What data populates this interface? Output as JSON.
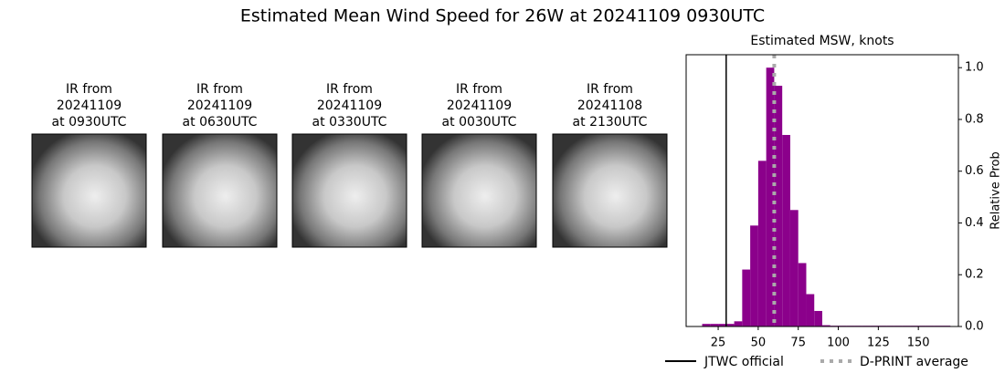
{
  "title": "Estimated Mean Wind Speed for 26W at 20241109 0930UTC",
  "panels": [
    {
      "caption": [
        "IR from",
        "20241109",
        "at 0930UTC"
      ]
    },
    {
      "caption": [
        "IR from",
        "20241109",
        "at 0630UTC"
      ]
    },
    {
      "caption": [
        "IR from",
        "20241109",
        "at 0330UTC"
      ]
    },
    {
      "caption": [
        "IR from",
        "20241109",
        "at 0030UTC"
      ]
    },
    {
      "caption": [
        "IR from",
        "20241108",
        "at 2130UTC"
      ]
    }
  ],
  "chart_data": {
    "type": "histogram",
    "title": "Estimated MSW, knots",
    "y_label": "Relative Prob",
    "color": "#8b008b",
    "bins": [
      15,
      20,
      25,
      30,
      35,
      40,
      45,
      50,
      55,
      60,
      65,
      70,
      75,
      80,
      85,
      90,
      95,
      100,
      105,
      110,
      115,
      120,
      125,
      130,
      135,
      140,
      145,
      150,
      155,
      160,
      165,
      170
    ],
    "counts": [
      0.01,
      0.01,
      0.01,
      0.01,
      0.02,
      0.22,
      0.39,
      0.64,
      1.0,
      0.93,
      0.74,
      0.45,
      0.245,
      0.125,
      0.06,
      0.005,
      0.003,
      0.003,
      0.003,
      0.003,
      0.003,
      0.003,
      0.003,
      0.003,
      0.003,
      0.003,
      0.003,
      0.003,
      0.003,
      0.003,
      0.003
    ],
    "lines": [
      {
        "name": "JTWC official",
        "value": 30,
        "color": "#000000",
        "style": "solid"
      },
      {
        "name": "D-PRINT average",
        "value": 60,
        "color": "#aaaaaa",
        "style": "dotted"
      }
    ],
    "xlim": [
      5,
      175
    ],
    "xticks": [
      25,
      50,
      75,
      100,
      125,
      150
    ],
    "ylim": [
      0,
      1.05
    ],
    "yticks": [
      {
        "value": 0,
        "label": "0.0"
      },
      0.2,
      0.4,
      0.6,
      0.8,
      {
        "value": 1,
        "label": "1.0"
      }
    ]
  }
}
